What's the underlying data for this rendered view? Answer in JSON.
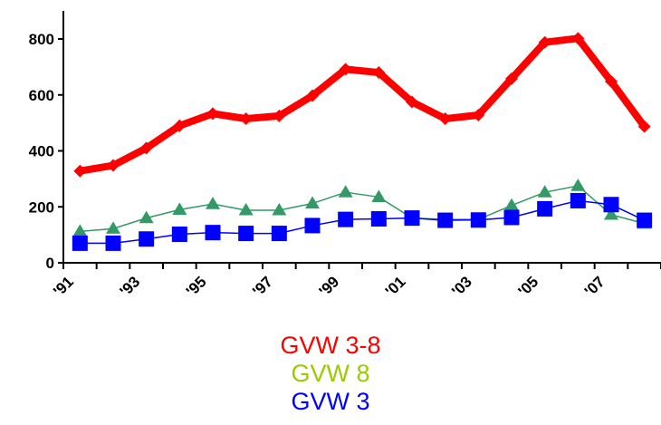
{
  "chart_data": {
    "type": "line",
    "x": [
      1991,
      1992,
      1993,
      1994,
      1995,
      1996,
      1997,
      1998,
      1999,
      2000,
      2001,
      2002,
      2003,
      2004,
      2005,
      2006,
      2007,
      2008
    ],
    "x_tick_labels": [
      "'91",
      "'93",
      "'95",
      "'97",
      "'99",
      "'01",
      "'03",
      "'05",
      "'07"
    ],
    "y_tick_labels": [
      "0",
      "200",
      "400",
      "600",
      "800"
    ],
    "ylim": [
      0,
      900
    ],
    "grid": false,
    "legend_position": "bottom",
    "series": [
      {
        "name": "GVW 3-8",
        "color": "#ff0000",
        "marker": "diamond",
        "values": [
          328,
          348,
          410,
          490,
          533,
          515,
          525,
          597,
          692,
          680,
          575,
          515,
          528,
          658,
          788,
          802,
          648,
          487
        ]
      },
      {
        "name": "GVW 8",
        "color": "#99cc00",
        "line_color": "#339966",
        "marker": "triangle",
        "values": [
          112,
          122,
          160,
          190,
          210,
          188,
          188,
          212,
          252,
          235,
          160,
          155,
          155,
          205,
          252,
          275,
          172,
          140
        ]
      },
      {
        "name": "GVW 3",
        "color": "#0000ff",
        "marker": "square",
        "values": [
          70,
          70,
          85,
          102,
          108,
          105,
          105,
          133,
          155,
          157,
          160,
          152,
          153,
          162,
          193,
          222,
          208,
          152
        ]
      }
    ]
  }
}
